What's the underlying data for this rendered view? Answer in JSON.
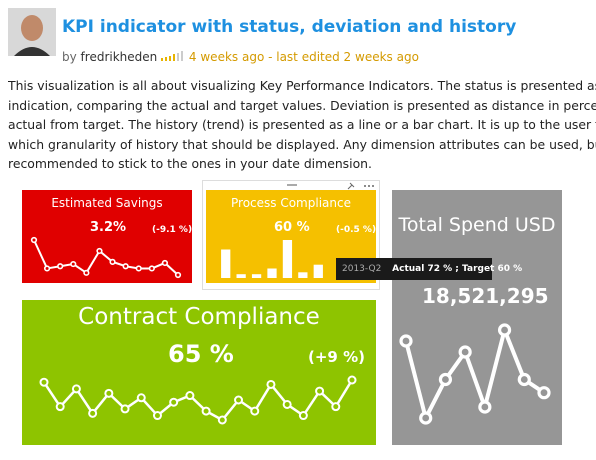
{
  "header": {
    "title": "KPI indicator with status, deviation and history",
    "by": "by",
    "author": "fredrikheden",
    "time": "4 weeks ago - last edited 2 weeks ago"
  },
  "description": [
    "This visualization is all about visualizing Key Performance Indicators. The status is presented as a col",
    "indication, comparing the actual and target values. Deviation is presented as distance in percent of",
    "actual from target. The history (trend) is presented as a line or a bar chart. It is up to the user to dec",
    "which granularity of history that should be displayed. Any dimension attributes can be used, but it’s",
    "recommended to stick to the ones in your date dimension."
  ],
  "tiles": [
    {
      "title": "Estimated Savings",
      "value": "3.2%",
      "deviation": "(-9.1 %)",
      "type": "line",
      "color": "#e00000",
      "values": [
        32,
        6,
        8,
        10,
        2,
        22,
        12,
        8,
        6,
        6,
        11,
        0
      ]
    },
    {
      "title": "Process Compliance",
      "value": "60 %",
      "deviation": "(-0.5 %)",
      "type": "bar",
      "color": "#f5c000",
      "values": [
        30,
        4,
        4,
        10,
        40,
        6,
        14
      ]
    },
    {
      "title": "Total Spend USD",
      "value": "18,521,295",
      "type": "line",
      "color": "#969696",
      "values": [
        70,
        0,
        35,
        60,
        10,
        80,
        35,
        23
      ]
    },
    {
      "title": "Contract Compliance",
      "value": "65 %",
      "deviation": "(+9 %)",
      "type": "line",
      "color": "#8ec400",
      "values": [
        36,
        14,
        30,
        8,
        26,
        12,
        22,
        6,
        18,
        24,
        10,
        2,
        20,
        10,
        34,
        16,
        6,
        28,
        14,
        38
      ]
    }
  ],
  "tooltip": {
    "period": "2013-Q2",
    "text": "Actual 72 % ; Target 60 %"
  }
}
